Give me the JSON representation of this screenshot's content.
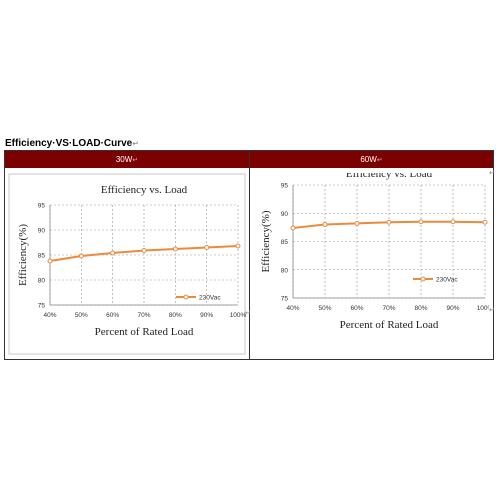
{
  "page": {
    "section_title": "Efficiency·VS·LOAD·Curve",
    "edit_mark": "↵"
  },
  "table": {
    "headers": [
      "30W",
      "60W"
    ]
  },
  "chart_data": [
    {
      "type": "line",
      "title": "Efficiency vs. Load",
      "xlabel": "Percent of Rated Load",
      "ylabel": "Efficiency(%)",
      "categories": [
        "40%",
        "50%",
        "60%",
        "70%",
        "80%",
        "90%",
        "100%"
      ],
      "ylim": [
        75,
        95
      ],
      "yticks": [
        75,
        80,
        85,
        90,
        95
      ],
      "grid": true,
      "legend_position": "bottom-right",
      "series": [
        {
          "name": "230Vac",
          "color": "#ec8a3c",
          "values": [
            83.8,
            84.8,
            85.4,
            85.9,
            86.2,
            86.5,
            86.8
          ]
        }
      ]
    },
    {
      "type": "line",
      "title": "Efficiency vs. Load",
      "xlabel": "Percent of Rated Load",
      "ylabel": "Efficiency(%)",
      "categories": [
        "40%",
        "50%",
        "60%",
        "70%",
        "80%",
        "90%",
        "100%"
      ],
      "ylim": [
        75,
        95
      ],
      "yticks": [
        75,
        80,
        85,
        90,
        95
      ],
      "grid": true,
      "legend_position": "bottom-right",
      "series": [
        {
          "name": "230Vac",
          "color": "#ec8a3c",
          "values": [
            87.4,
            88.0,
            88.2,
            88.4,
            88.5,
            88.5,
            88.4
          ]
        }
      ]
    }
  ]
}
